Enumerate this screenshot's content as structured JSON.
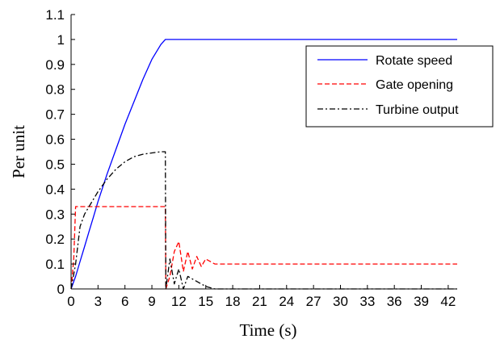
{
  "chart_data": {
    "type": "line",
    "xlabel": "Time (s)",
    "ylabel": "Per unit",
    "xlim": [
      0,
      43
    ],
    "ylim": [
      0,
      1.1
    ],
    "x_ticks": [
      0,
      3,
      6,
      9,
      12,
      15,
      18,
      21,
      24,
      27,
      30,
      33,
      36,
      39,
      42
    ],
    "y_ticks": [
      0,
      0.1,
      0.2,
      0.3,
      0.4,
      0.5,
      0.6,
      0.7,
      0.8,
      0.9,
      1,
      1.1
    ],
    "grid": false,
    "legend_position": "top-right",
    "series": [
      {
        "name": "Rotate speed",
        "color": "#0000ff",
        "style": "solid",
        "x": [
          0,
          0.5,
          1,
          1.5,
          2,
          2.5,
          3,
          4,
          5,
          6,
          7,
          8,
          9,
          10,
          10.5,
          11,
          12,
          14,
          20,
          30,
          43
        ],
        "values": [
          0,
          0.05,
          0.11,
          0.17,
          0.23,
          0.29,
          0.35,
          0.46,
          0.56,
          0.66,
          0.75,
          0.84,
          0.92,
          0.98,
          1.0,
          1.0,
          1.0,
          1.0,
          1.0,
          1.0,
          1.0
        ]
      },
      {
        "name": "Gate opening",
        "color": "#ff0000",
        "style": "dashed",
        "x": [
          0,
          0.3,
          0.5,
          2,
          5,
          8,
          10.5,
          10.55,
          11,
          11.5,
          12,
          12.5,
          13,
          13.5,
          14,
          14.5,
          15,
          16,
          17,
          20,
          43
        ],
        "values": [
          0,
          0.12,
          0.33,
          0.33,
          0.33,
          0.33,
          0.33,
          0.0,
          0.05,
          0.15,
          0.19,
          0.07,
          0.15,
          0.08,
          0.13,
          0.09,
          0.12,
          0.1,
          0.1,
          0.1,
          0.1
        ]
      },
      {
        "name": "Turbine output",
        "color": "#000000",
        "style": "dashdot",
        "x": [
          0,
          0.5,
          1,
          1.5,
          2,
          3,
          4,
          5,
          6,
          7,
          8,
          9,
          10,
          10.5,
          10.55,
          11,
          11.5,
          12,
          12.5,
          13,
          14,
          15,
          16,
          18,
          25,
          43
        ],
        "values": [
          0,
          0.1,
          0.25,
          0.3,
          0.33,
          0.39,
          0.44,
          0.48,
          0.51,
          0.53,
          0.54,
          0.545,
          0.55,
          0.55,
          0.0,
          0.12,
          0.02,
          0.08,
          0.0,
          0.05,
          0.03,
          0.01,
          0.0,
          0.0,
          0.0,
          0.0
        ]
      }
    ]
  }
}
